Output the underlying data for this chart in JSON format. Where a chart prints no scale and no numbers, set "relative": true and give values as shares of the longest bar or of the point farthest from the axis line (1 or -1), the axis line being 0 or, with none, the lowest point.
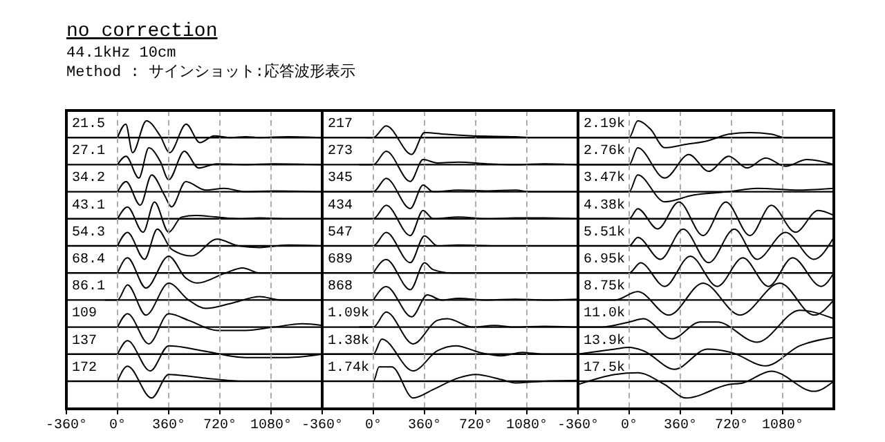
{
  "chart_data": [
    {
      "type": "other",
      "title": "no correction",
      "subtitle": "44.1kHz 10cm",
      "annotations": [
        "Method : サインショット:応答波形表示"
      ]
    },
    {
      "type": "line",
      "title": "21.5",
      "x": [
        0,
        58,
        106,
        203,
        300,
        367,
        483,
        579,
        680,
        800,
        900,
        1000,
        1200,
        1440
      ],
      "values": [
        0,
        0.8,
        -0.9,
        1,
        0.1,
        -0.9,
        0.8,
        -0.3,
        0.1,
        0,
        0.05,
        0,
        0.05,
        0
      ],
      "color": "#000000",
      "relative": true,
      "xlim": [
        -360,
        1440
      ],
      "xticks": [
        -360,
        0,
        360,
        720,
        1080
      ],
      "grid": "x",
      "tick_labels": false
    },
    {
      "type": "line",
      "title": "27.1",
      "x": [
        0,
        60,
        150,
        220,
        300,
        360,
        470,
        570,
        700,
        900,
        1100,
        1440
      ],
      "values": [
        0,
        0.5,
        -0.8,
        1,
        0.2,
        -0.9,
        0.8,
        -0.2,
        0.05,
        0,
        0.05,
        0
      ],
      "color": "#000000",
      "relative": true,
      "xlim": [
        -360,
        1440
      ],
      "xticks": [
        -360,
        0,
        360,
        720,
        1080
      ],
      "grid": "x",
      "tick_labels": false
    },
    {
      "type": "line",
      "title": "34.2",
      "x": [
        0,
        60,
        160,
        240,
        330,
        380,
        480,
        620,
        750,
        900,
        1100,
        1440
      ],
      "values": [
        0,
        0.6,
        -0.8,
        1,
        -0.2,
        -0.9,
        0.6,
        0.1,
        0.2,
        0,
        0.05,
        0
      ],
      "color": "#000000",
      "relative": true,
      "xlim": [
        -360,
        1440
      ],
      "xticks": [
        -360,
        0,
        360,
        720,
        1080
      ],
      "grid": "x",
      "tick_labels": false
    },
    {
      "type": "line",
      "title": "43.1",
      "x": [
        0,
        70,
        180,
        260,
        360,
        450,
        550,
        700,
        850,
        1000,
        1200,
        1440
      ],
      "values": [
        0,
        0.7,
        -0.8,
        1,
        -0.8,
        0.1,
        0.2,
        0.1,
        0,
        0.05,
        0,
        0
      ],
      "color": "#000000",
      "relative": true,
      "xlim": [
        -360,
        1440
      ],
      "xticks": [
        -360,
        0,
        360,
        720,
        1080
      ],
      "grid": "x",
      "tick_labels": false
    },
    {
      "type": "line",
      "title": "54.3",
      "x": [
        0,
        70,
        190,
        280,
        380,
        520,
        700,
        850,
        1000,
        1200,
        1440
      ],
      "values": [
        0,
        0.8,
        -0.8,
        1,
        -0.2,
        -0.6,
        0.4,
        0,
        -0.1,
        0.05,
        0
      ],
      "color": "#000000",
      "relative": true,
      "xlim": [
        -360,
        1440
      ],
      "xticks": [
        -360,
        0,
        360,
        720,
        1080
      ],
      "grid": "x",
      "tick_labels": false
    },
    {
      "type": "line",
      "title": "68.4",
      "x": [
        0,
        70,
        200,
        360,
        480,
        560,
        760,
        880,
        1000,
        1200,
        1440
      ],
      "values": [
        0,
        0.9,
        -0.9,
        1,
        -0.3,
        -0.6,
        0,
        0.3,
        0,
        0,
        0
      ],
      "color": "#000000",
      "relative": true,
      "xlim": [
        -360,
        1440
      ],
      "xticks": [
        -360,
        0,
        360,
        720,
        1080
      ],
      "grid": "x",
      "tick_labels": false
    },
    {
      "type": "line",
      "title": "86.1",
      "x": [
        -90,
        0,
        70,
        200,
        360,
        500,
        620,
        800,
        1000,
        1150,
        1440
      ],
      "values": [
        0,
        0,
        0.9,
        -0.9,
        1,
        0,
        -0.5,
        -0.2,
        0.2,
        0,
        0
      ],
      "color": "#000000",
      "relative": true,
      "xlim": [
        -360,
        1440
      ],
      "xticks": [
        -360,
        0,
        360,
        720,
        1080
      ],
      "grid": "x",
      "tick_labels": false
    },
    {
      "type": "line",
      "title": "109",
      "x": [
        0,
        70,
        220,
        360,
        500,
        700,
        900,
        1100,
        1300,
        1440
      ],
      "values": [
        0,
        0.8,
        -1,
        0.8,
        0.4,
        -0.2,
        -0.2,
        0,
        0.2,
        0.1
      ],
      "color": "#000000",
      "relative": true,
      "xlim": [
        -360,
        1440
      ],
      "xticks": [
        -360,
        0,
        360,
        720,
        1080
      ],
      "grid": "x",
      "tick_labels": false
    },
    {
      "type": "line",
      "title": "137",
      "x": [
        0,
        70,
        230,
        360,
        600,
        900,
        1200,
        1440
      ],
      "values": [
        0,
        0.8,
        -1,
        0.5,
        0.2,
        -0.2,
        -0.2,
        0
      ],
      "color": "#000000",
      "relative": true,
      "xlim": [
        -360,
        1440
      ],
      "xticks": [
        -360,
        0,
        360,
        720,
        1080
      ],
      "grid": "x",
      "tick_labels": false
    },
    {
      "type": "line",
      "title": "172",
      "x": [
        0,
        70,
        240,
        360,
        600,
        900,
        1100
      ],
      "values": [
        0,
        0.9,
        -1,
        0.4,
        0.2,
        0,
        0
      ],
      "color": "#000000",
      "relative": true,
      "xlim": [
        -360,
        1440
      ],
      "xticks": [
        {
          "value": -360,
          "label": "-360°"
        },
        {
          "value": 0,
          "label": "0°"
        },
        {
          "value": 360,
          "label": "360°"
        },
        {
          "value": 720,
          "label": "720°"
        },
        {
          "value": 1080,
          "label": "1080°"
        }
      ],
      "grid": "x",
      "tick_labels": "x"
    },
    {
      "type": "line",
      "title": "217",
      "x": [
        -50,
        0,
        90,
        270,
        360,
        500,
        700,
        1000,
        1100
      ],
      "values": [
        0,
        0,
        0.7,
        -1,
        0.3,
        0.2,
        0.1,
        0.05,
        0
      ],
      "color": "#000000",
      "relative": true,
      "xlim": [
        -360,
        1440
      ],
      "xticks": [
        -360,
        0,
        360,
        720,
        1080
      ],
      "grid": "x",
      "tick_labels": false
    },
    {
      "type": "line",
      "title": "273",
      "x": [
        -100,
        0,
        90,
        260,
        350,
        450,
        600,
        800,
        1000,
        1200,
        1440
      ],
      "values": [
        0,
        0,
        0.8,
        -1,
        0.3,
        0.1,
        0.15,
        0.05,
        0,
        0.05,
        0
      ],
      "color": "#000000",
      "relative": true,
      "xlim": [
        -360,
        1440
      ],
      "xticks": [
        -360,
        0,
        360,
        720,
        1080
      ],
      "grid": "x",
      "tick_labels": false
    },
    {
      "type": "line",
      "title": "345",
      "x": [
        -360,
        0,
        90,
        260,
        350,
        420,
        600,
        800,
        1000,
        1100,
        1440
      ],
      "values": [
        0,
        0,
        0.8,
        -1,
        0.4,
        0,
        0.1,
        0.05,
        0.1,
        0,
        0
      ],
      "color": "#000000",
      "relative": true,
      "xlim": [
        -360,
        1440
      ],
      "xticks": [
        -360,
        0,
        360,
        720,
        1080
      ],
      "grid": "x",
      "tick_labels": false
    },
    {
      "type": "line",
      "title": "434",
      "x": [
        -360,
        -50,
        0,
        90,
        260,
        350,
        420,
        600,
        800,
        1000,
        1200,
        1440
      ],
      "values": [
        0,
        0,
        0,
        0.8,
        -1,
        0.5,
        0,
        0.1,
        0,
        0.05,
        0.05,
        0
      ],
      "color": "#000000",
      "relative": true,
      "xlim": [
        -360,
        1440
      ],
      "xticks": [
        -360,
        0,
        360,
        720,
        1080
      ],
      "grid": "x",
      "tick_labels": false
    },
    {
      "type": "line",
      "title": "547",
      "x": [
        -360,
        -50,
        0,
        90,
        260,
        360,
        450,
        600,
        900,
        1200,
        1440
      ],
      "values": [
        0,
        0,
        0,
        0.8,
        -1,
        0.6,
        0,
        0.05,
        0,
        0,
        0
      ],
      "color": "#000000",
      "relative": true,
      "xlim": [
        -360,
        1440
      ],
      "xticks": [
        -360,
        0,
        360,
        720,
        1080
      ],
      "grid": "x",
      "tick_labels": false
    },
    {
      "type": "line",
      "title": "689",
      "x": [
        0,
        90,
        260,
        360,
        420,
        550,
        800,
        1100,
        1440
      ],
      "values": [
        0,
        0.8,
        -1,
        0.6,
        0.2,
        0,
        0,
        0,
        0
      ],
      "color": "#000000",
      "relative": true,
      "xlim": [
        -360,
        1440
      ],
      "xticks": [
        -360,
        0,
        360,
        720,
        1080
      ],
      "grid": "x",
      "tick_labels": false
    },
    {
      "type": "line",
      "title": "868",
      "x": [
        0,
        90,
        270,
        380,
        480,
        600,
        800,
        1000,
        1200,
        1440
      ],
      "values": [
        0,
        0.8,
        -1,
        0.3,
        0,
        0.1,
        0,
        0.05,
        0,
        0.05
      ],
      "color": "#000000",
      "relative": true,
      "xlim": [
        -360,
        1440
      ],
      "xticks": [
        -360,
        0,
        360,
        720,
        1080
      ],
      "grid": "x",
      "tick_labels": false
    },
    {
      "type": "line",
      "title": "1.09k",
      "x": [
        -100,
        0,
        90,
        280,
        450,
        520,
        700,
        850,
        1000,
        1200,
        1440
      ],
      "values": [
        0,
        0,
        0.9,
        -1,
        0.4,
        0.5,
        0,
        0.1,
        0,
        0.05,
        0
      ],
      "color": "#000000",
      "relative": true,
      "xlim": [
        -360,
        1440
      ],
      "xticks": [
        -360,
        0,
        360,
        720,
        1080
      ],
      "grid": "x",
      "tick_labels": false
    },
    {
      "type": "line",
      "title": "1.38k",
      "x": [
        -360,
        0,
        60,
        280,
        450,
        580,
        750,
        900,
        1050,
        1200,
        1440
      ],
      "values": [
        0,
        0,
        0.9,
        -1,
        0.2,
        0.5,
        0.1,
        -0.1,
        0.1,
        0,
        0
      ],
      "color": "#000000",
      "relative": true,
      "xlim": [
        -360,
        1440
      ],
      "xticks": [
        -360,
        0,
        360,
        720,
        1080
      ],
      "grid": "x",
      "tick_labels": false
    },
    {
      "type": "line",
      "title": "1.74k",
      "x": [
        -360,
        0,
        40,
        130,
        280,
        420,
        600,
        720,
        900,
        1000,
        1200,
        1440
      ],
      "values": [
        0,
        0,
        0.85,
        0.85,
        -1,
        -0.5,
        0.2,
        0.4,
        0.1,
        -0.1,
        0,
        0.05
      ],
      "color": "#000000",
      "relative": true,
      "xlim": [
        -360,
        1440
      ],
      "xticks": [
        {
          "value": -360,
          "label": "-360°"
        },
        {
          "value": 0,
          "label": "0°"
        },
        {
          "value": 360,
          "label": "360°"
        },
        {
          "value": 720,
          "label": "720°"
        },
        {
          "value": 1080,
          "label": "1080°"
        }
      ],
      "grid": "x",
      "tick_labels": "x"
    },
    {
      "type": "line",
      "title": "2.19k",
      "x": [
        -360,
        0,
        60,
        150,
        250,
        400,
        550,
        700,
        850,
        1000,
        1100,
        1440
      ],
      "values": [
        0,
        0,
        1,
        0.5,
        -0.6,
        -0.4,
        -0.2,
        0.2,
        0.3,
        0.2,
        0,
        0
      ],
      "color": "#000000",
      "relative": true,
      "xlim": [
        -360,
        1440
      ],
      "xticks": [
        -360,
        0,
        360,
        720,
        1080
      ],
      "grid": "x",
      "tick_labels": false
    },
    {
      "type": "line",
      "title": "2.76k",
      "x": [
        -360,
        0,
        60,
        250,
        420,
        560,
        700,
        830,
        960,
        1100,
        1250,
        1440
      ],
      "values": [
        0,
        0,
        1,
        -0.8,
        0.6,
        -0.4,
        0.5,
        -0.2,
        0.4,
        -0.1,
        0.3,
        0
      ],
      "color": "#000000",
      "relative": true,
      "xlim": [
        -360,
        1440
      ],
      "xticks": [
        -360,
        0,
        360,
        720,
        1080
      ],
      "grid": "x",
      "tick_labels": false
    },
    {
      "type": "line",
      "title": "3.47k",
      "x": [
        -360,
        0,
        60,
        250,
        450,
        700,
        900,
        1200,
        1440
      ],
      "values": [
        0,
        0,
        1,
        -0.6,
        -0.2,
        0,
        0.2,
        0.1,
        0.2
      ],
      "color": "#000000",
      "relative": true,
      "xlim": [
        -360,
        1440
      ],
      "xticks": [
        -360,
        0,
        360,
        720,
        1080
      ],
      "grid": "x",
      "tick_labels": false
    },
    {
      "type": "line",
      "title": "4.38k",
      "x": [
        -360,
        0,
        60,
        200,
        350,
        520,
        680,
        850,
        1000,
        1170,
        1330,
        1440
      ],
      "values": [
        0,
        0,
        0.6,
        -0.6,
        1,
        -1,
        1,
        -1,
        0.8,
        -0.8,
        0.5,
        0.2
      ],
      "color": "#000000",
      "relative": true,
      "xlim": [
        -360,
        1440
      ],
      "xticks": [
        -360,
        0,
        360,
        720,
        1080
      ],
      "grid": "x",
      "tick_labels": false
    },
    {
      "type": "line",
      "title": "5.51k",
      "x": [
        -360,
        0,
        60,
        220,
        380,
        560,
        740,
        900,
        1100,
        1300,
        1440
      ],
      "values": [
        0,
        0,
        0.5,
        -0.8,
        1,
        -1,
        1,
        -0.8,
        0.8,
        -0.8,
        0.5
      ],
      "color": "#000000",
      "relative": true,
      "xlim": [
        -360,
        1440
      ],
      "xticks": [
        -360,
        0,
        360,
        720,
        1080
      ],
      "grid": "x",
      "tick_labels": false
    },
    {
      "type": "line",
      "title": "6.95k",
      "x": [
        -360,
        0,
        80,
        250,
        430,
        620,
        800,
        980,
        1150,
        1350,
        1440
      ],
      "values": [
        0,
        0,
        0.6,
        -0.8,
        1,
        -0.8,
        0.9,
        -0.8,
        0.9,
        -0.8,
        0
      ],
      "color": "#000000",
      "relative": true,
      "xlim": [
        -360,
        1440
      ],
      "xticks": [
        -360,
        0,
        360,
        720,
        1080
      ],
      "grid": "x",
      "tick_labels": false
    },
    {
      "type": "line",
      "title": "8.75k",
      "x": [
        -360,
        -100,
        60,
        280,
        520,
        780,
        1060,
        1300,
        1440
      ],
      "values": [
        0,
        0,
        0.5,
        -0.9,
        1,
        -0.9,
        1,
        -0.9,
        0
      ],
      "color": "#000000",
      "relative": true,
      "xlim": [
        -360,
        1440
      ],
      "xticks": [
        -360,
        0,
        360,
        720,
        1080
      ],
      "grid": "x",
      "tick_labels": false
    },
    {
      "type": "line",
      "title": "11.0k",
      "x": [
        -360,
        -200,
        0,
        100,
        300,
        500,
        620,
        900,
        1200,
        1440
      ],
      "values": [
        0,
        0,
        0.3,
        0.5,
        -0.7,
        0.3,
        0.3,
        -0.9,
        1,
        0.5
      ],
      "color": "#000000",
      "relative": true,
      "xlim": [
        -360,
        1440
      ],
      "xticks": [
        -360,
        0,
        360,
        720,
        1080
      ],
      "grid": "x",
      "tick_labels": false
    },
    {
      "type": "line",
      "title": "13.9k",
      "x": [
        -360,
        -100,
        0,
        100,
        320,
        550,
        720,
        960,
        1200,
        1440
      ],
      "values": [
        0,
        0.3,
        0.4,
        0.2,
        -0.9,
        0.3,
        0.1,
        -0.7,
        0.5,
        1
      ],
      "color": "#000000",
      "relative": true,
      "xlim": [
        -360,
        1440
      ],
      "xticks": [
        -360,
        0,
        360,
        720,
        1080
      ],
      "grid": "x",
      "tick_labels": false
    },
    {
      "type": "line",
      "title": "17.5k",
      "x": [
        -360,
        -100,
        60,
        250,
        400,
        700,
        800,
        1000,
        1300,
        1440
      ],
      "values": [
        -0.2,
        0.4,
        0.5,
        -0.2,
        -1,
        -0.2,
        -0.1,
        0.6,
        -0.6,
        0
      ],
      "color": "#000000",
      "relative": true,
      "xlim": [
        -360,
        1440
      ],
      "xticks": [
        {
          "value": -360,
          "label": "-360°"
        },
        {
          "value": 0,
          "label": "0°"
        },
        {
          "value": 360,
          "label": "360°"
        },
        {
          "value": 720,
          "label": "720°"
        },
        {
          "value": 1080,
          "label": "1080°"
        }
      ],
      "grid": "x",
      "tick_labels": "x"
    }
  ]
}
